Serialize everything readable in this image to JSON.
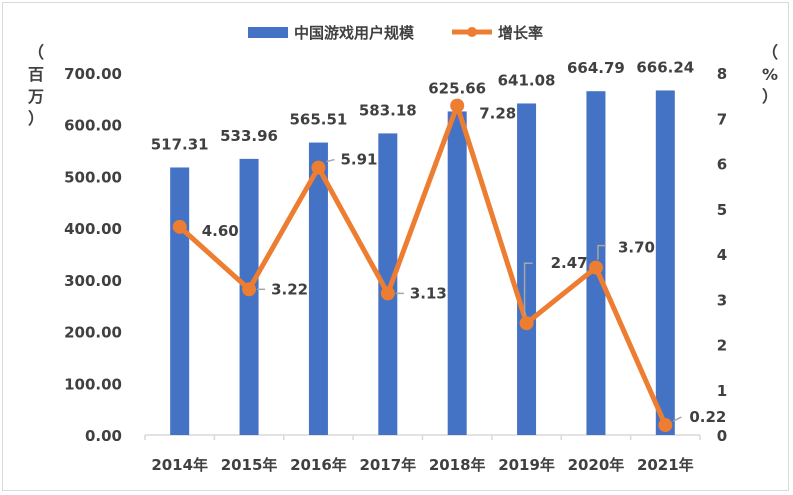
{
  "chart_data": {
    "type": "bar+line",
    "categories": [
      "2014年",
      "2015年",
      "2016年",
      "2017年",
      "2018年",
      "2019年",
      "2020年",
      "2021年"
    ],
    "series": [
      {
        "name": "中国游戏用户规模",
        "type": "bar",
        "axis": "left",
        "color": "#4472C4",
        "values": [
          517.31,
          533.96,
          565.51,
          583.18,
          625.66,
          641.08,
          664.79,
          666.24
        ],
        "labels": [
          "517.31",
          "533.96",
          "565.51",
          "583.18",
          "625.66",
          "641.08",
          "664.79",
          "666.24"
        ]
      },
      {
        "name": "增长率",
        "type": "line",
        "axis": "right",
        "color": "#ED7D31",
        "values": [
          4.6,
          3.22,
          5.91,
          3.13,
          7.28,
          2.47,
          3.7,
          0.22
        ],
        "labels": [
          "4.60",
          "3.22",
          "5.91",
          "3.13",
          "7.28",
          "2.47",
          "3.70",
          "0.22"
        ]
      }
    ],
    "left_axis": {
      "title": [
        "（",
        "百",
        "万",
        "）"
      ],
      "ylim": [
        0,
        700
      ],
      "ticks": [
        "0.00",
        "100.00",
        "200.00",
        "300.00",
        "400.00",
        "500.00",
        "600.00",
        "700.00"
      ]
    },
    "right_axis": {
      "title": [
        "（",
        "%",
        "）"
      ],
      "ylim": [
        0,
        8
      ],
      "ticks": [
        "0",
        "1",
        "2",
        "3",
        "4",
        "5",
        "6",
        "7",
        "8"
      ]
    },
    "legend": "top-center",
    "grid": false
  }
}
